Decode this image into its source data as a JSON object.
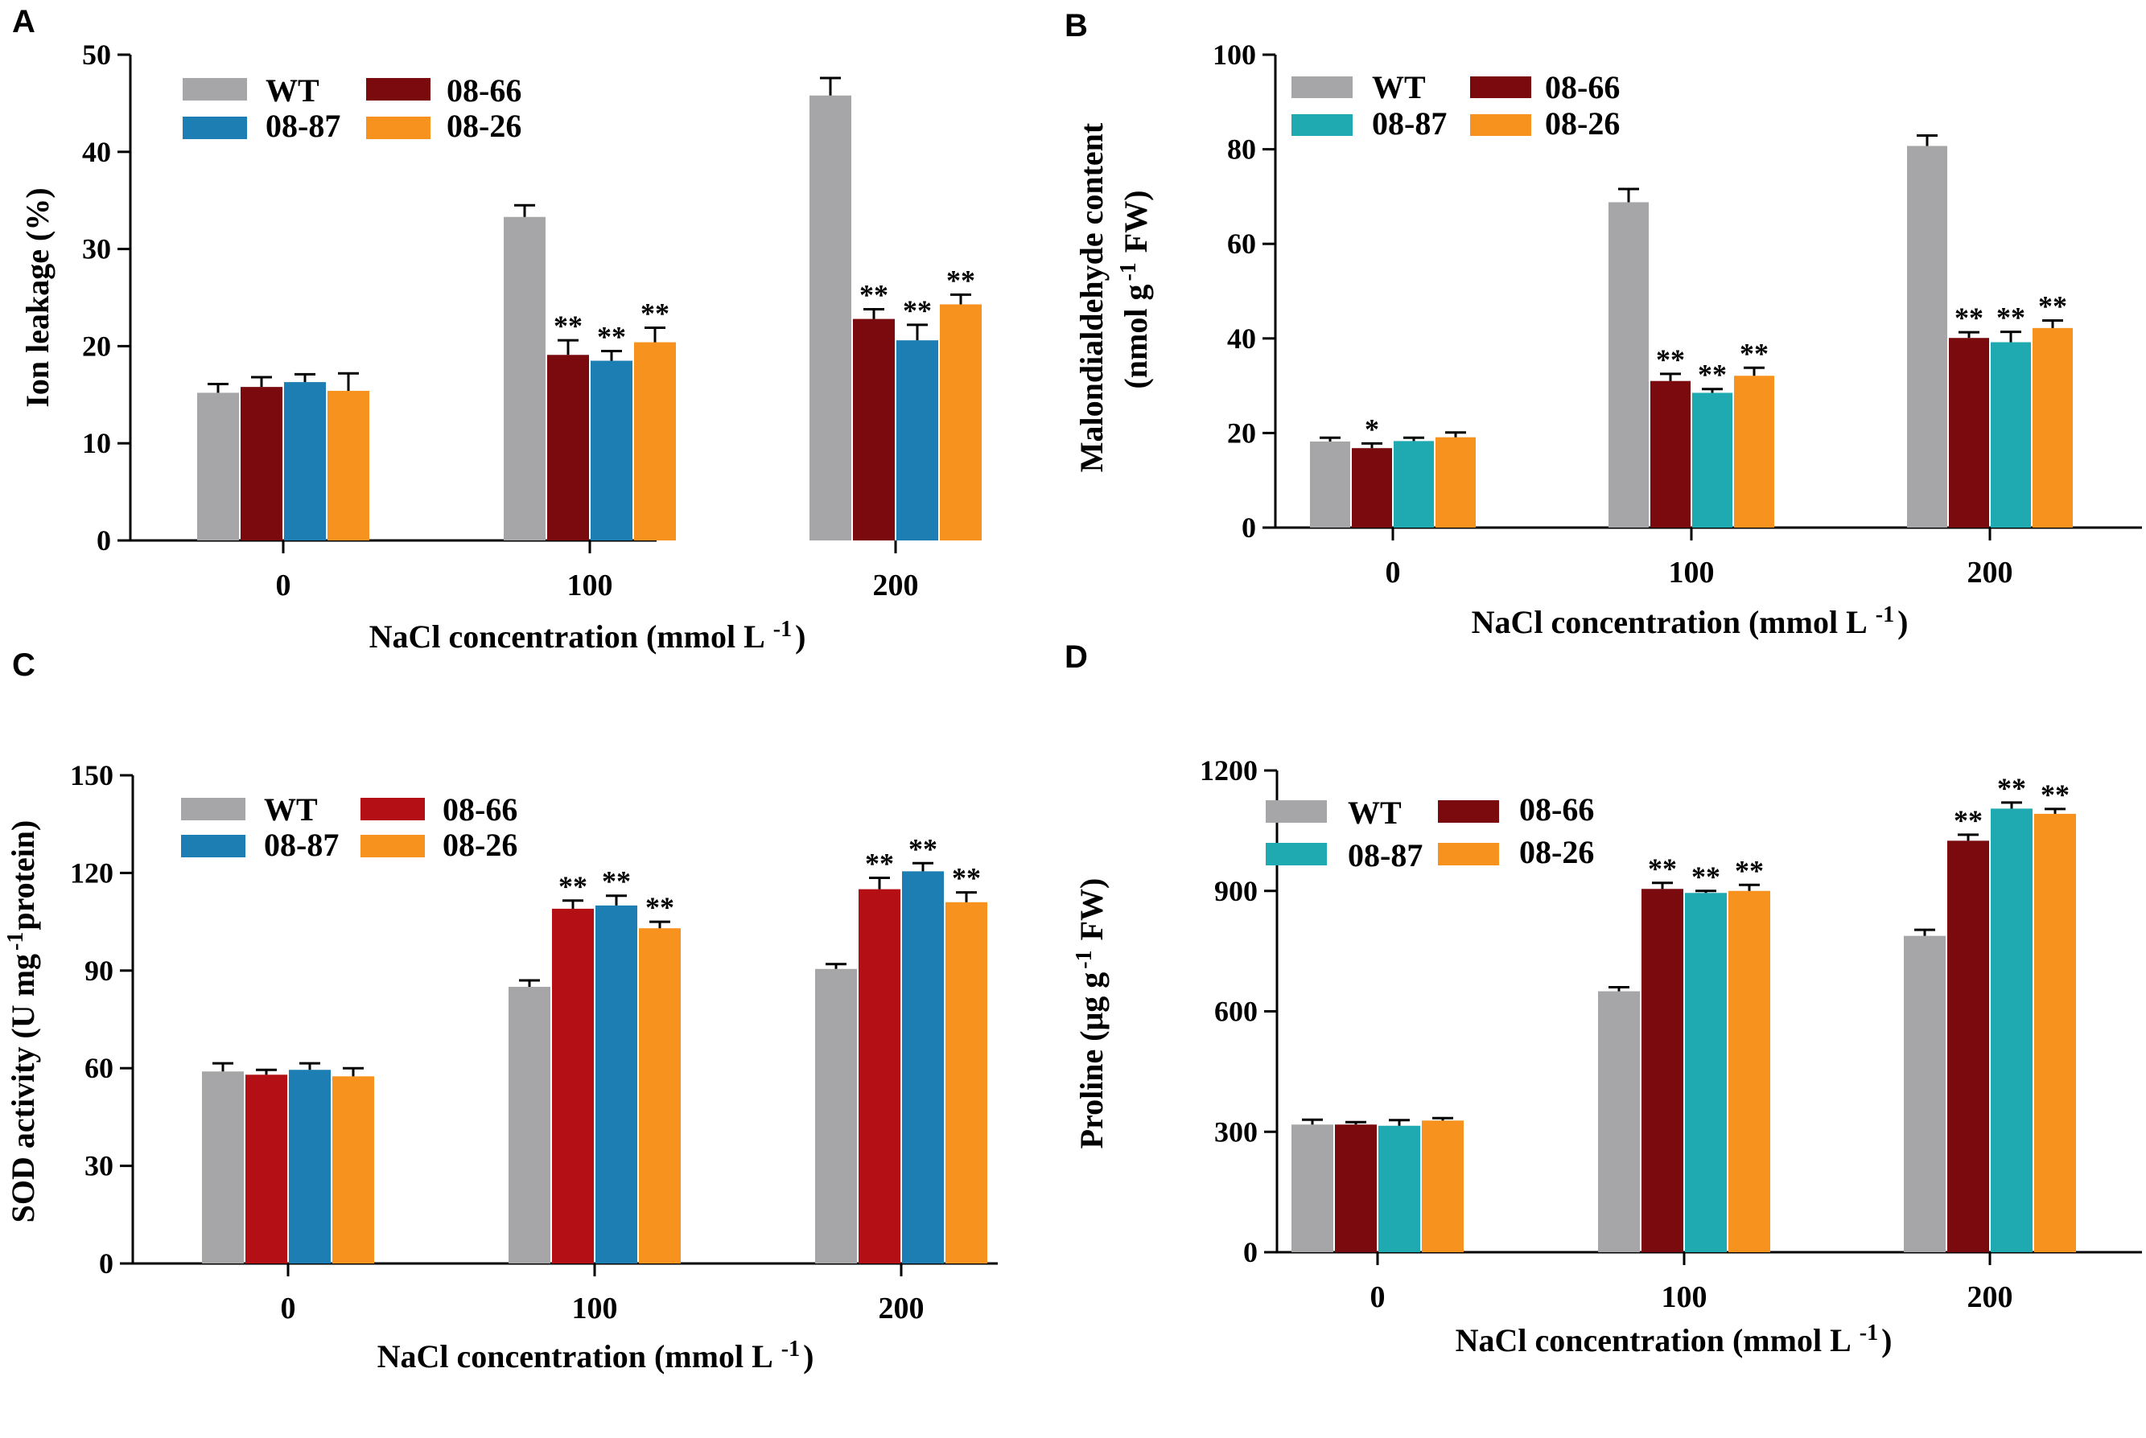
{
  "figure": {
    "colors": {
      "WT": "#A6A6A8",
      "08-66": "#7A0A0E",
      "08-87": "#1D7EB3",
      "08-26": "#F7921E",
      "08-66_C": "#B40F14",
      "08-87_BD": "#1FA9B0"
    }
  },
  "chart_data": [
    {
      "panel": "A",
      "type": "bar",
      "title": "",
      "xlabel": "NaCl concentration (mmol L",
      "xlabel_sup": "-1",
      "xlabel_close": ")",
      "ylabel": "Ion leakage (%)",
      "ylim": [
        0,
        50
      ],
      "yticks": [
        0,
        10,
        20,
        30,
        40,
        50
      ],
      "categories": [
        "0",
        "100",
        "200"
      ],
      "legend": {
        "placement": "top-left",
        "order": [
          "WT",
          "08-66",
          "08-87",
          "08-26"
        ]
      },
      "series": [
        {
          "name": "WT",
          "color": "#A6A6A8",
          "values": [
            15.2,
            33.3,
            45.8
          ],
          "errors": [
            0.9,
            1.2,
            1.8
          ],
          "sig": [
            "",
            "",
            ""
          ]
        },
        {
          "name": "08-66",
          "color": "#7A0A0E",
          "values": [
            15.8,
            19.1,
            22.8
          ],
          "errors": [
            1.0,
            1.5,
            1.0
          ],
          "sig": [
            "",
            "**",
            "**"
          ]
        },
        {
          "name": "08-87",
          "color": "#1D7EB3",
          "values": [
            16.3,
            18.5,
            20.6
          ],
          "errors": [
            0.8,
            1.0,
            1.6
          ],
          "sig": [
            "",
            "**",
            "**"
          ]
        },
        {
          "name": "08-26",
          "color": "#F7921E",
          "values": [
            15.4,
            20.4,
            24.3
          ],
          "errors": [
            1.8,
            1.5,
            1.0
          ],
          "sig": [
            "",
            "**",
            "**"
          ]
        }
      ]
    },
    {
      "panel": "B",
      "type": "bar",
      "title": "",
      "xlabel": "NaCl concentration (mmol L",
      "xlabel_sup": "-1",
      "xlabel_close": ")",
      "ylabel": "Malondialdehyde content",
      "ylabel2": "(nmol g",
      "ylabel2_sup": "-1",
      "ylabel2_tail": " FW)",
      "ylim": [
        0,
        100
      ],
      "yticks": [
        0,
        20,
        40,
        60,
        80,
        100
      ],
      "categories": [
        "0",
        "100",
        "200"
      ],
      "legend": {
        "placement": "top-left",
        "order": [
          "WT",
          "08-66",
          "08-87",
          "08-26"
        ]
      },
      "series": [
        {
          "name": "WT",
          "color": "#A6A6A8",
          "values": [
            18.2,
            68.8,
            80.7
          ],
          "errors": [
            0.8,
            2.8,
            2.2
          ],
          "sig": [
            "",
            "",
            ""
          ]
        },
        {
          "name": "08-66",
          "color": "#7A0A0E",
          "values": [
            16.8,
            31.0,
            40.1
          ],
          "errors": [
            1.0,
            1.5,
            1.2
          ],
          "sig": [
            "*",
            "**",
            "**"
          ]
        },
        {
          "name": "08-87",
          "color": "#1FA9B0",
          "values": [
            18.3,
            28.5,
            39.2
          ],
          "errors": [
            0.7,
            0.8,
            2.2
          ],
          "sig": [
            "",
            "**",
            "**"
          ]
        },
        {
          "name": "08-26",
          "color": "#F7921E",
          "values": [
            19.1,
            32.1,
            42.2
          ],
          "errors": [
            1.0,
            1.7,
            1.6
          ],
          "sig": [
            "",
            "**",
            "**"
          ]
        }
      ]
    },
    {
      "panel": "C",
      "type": "bar",
      "title": "",
      "xlabel": "NaCl concentration (mmol L",
      "xlabel_sup": "-1",
      "xlabel_close": ")",
      "ylabel": "SOD activity (U mg",
      "ylabel_sup": "-1",
      "ylabel_tail": "protein)",
      "ylim": [
        0,
        150
      ],
      "yticks": [
        0,
        30,
        60,
        90,
        120,
        150
      ],
      "categories": [
        "0",
        "100",
        "200"
      ],
      "legend": {
        "placement": "top-left",
        "order": [
          "WT",
          "08-66",
          "08-87",
          "08-26"
        ]
      },
      "series": [
        {
          "name": "WT",
          "color": "#A6A6A8",
          "values": [
            59.0,
            85.0,
            90.5
          ],
          "errors": [
            2.5,
            2.0,
            1.5
          ],
          "sig": [
            "",
            "",
            ""
          ]
        },
        {
          "name": "08-66",
          "color": "#B40F14",
          "values": [
            58.0,
            109.0,
            115.0
          ],
          "errors": [
            1.5,
            2.5,
            3.5
          ],
          "sig": [
            "",
            "**",
            "**"
          ]
        },
        {
          "name": "08-87",
          "color": "#1D7EB3",
          "values": [
            59.5,
            110.0,
            120.5
          ],
          "errors": [
            2.0,
            3.0,
            2.5
          ],
          "sig": [
            "",
            "**",
            "**"
          ]
        },
        {
          "name": "08-26",
          "color": "#F7921E",
          "values": [
            57.5,
            103.0,
            111.0
          ],
          "errors": [
            2.5,
            2.0,
            3.0
          ],
          "sig": [
            "",
            "**",
            "**"
          ]
        }
      ]
    },
    {
      "panel": "D",
      "type": "bar",
      "title": "",
      "xlabel": "NaCl concentration (mmol L",
      "xlabel_sup": "-1",
      "xlabel_close": ")",
      "ylabel": "Proline (μg g",
      "ylabel_sup": "-1",
      "ylabel_tail": " FW)",
      "ylim": [
        0,
        1200
      ],
      "yticks": [
        0,
        300,
        600,
        900,
        1200
      ],
      "categories": [
        "0",
        "100",
        "200"
      ],
      "legend": {
        "placement": "top-left",
        "order": [
          "WT",
          "08-66",
          "08-87",
          "08-26"
        ]
      },
      "series": [
        {
          "name": "WT",
          "color": "#A6A6A8",
          "values": [
            318,
            650,
            788
          ],
          "errors": [
            12,
            10,
            15
          ],
          "sig": [
            "",
            "",
            ""
          ]
        },
        {
          "name": "08-66",
          "color": "#7A0A0E",
          "values": [
            318,
            905,
            1025
          ],
          "errors": [
            6,
            15,
            15
          ],
          "sig": [
            "",
            "**",
            "**"
          ]
        },
        {
          "name": "08-87",
          "color": "#1FA9B0",
          "values": [
            315,
            895,
            1105
          ],
          "errors": [
            14,
            5,
            15
          ],
          "sig": [
            "",
            "**",
            "**"
          ]
        },
        {
          "name": "08-26",
          "color": "#F7921E",
          "values": [
            328,
            900,
            1092
          ],
          "errors": [
            6,
            15,
            12
          ],
          "sig": [
            "",
            "**",
            "**"
          ]
        }
      ]
    }
  ]
}
